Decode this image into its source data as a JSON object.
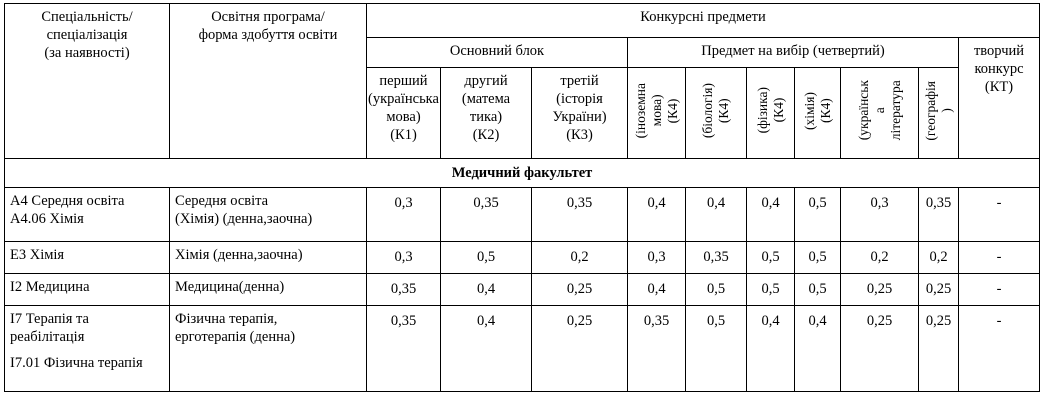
{
  "header": {
    "specialty": "Спеціальність/\nспеціалізація\n(за наявності)",
    "program": "Освітня програма/\nформа здобуття освіти",
    "subjects": "Конкурсні предмети",
    "main_block": "Основний блок",
    "choice_block": "Предмет на вибір (четвертий)",
    "creative": "творчий\nконкурс\n(КТ)",
    "k1": "перший\n(українська\nмова)\n(К1)",
    "k2": "другий\n(матема\nтика)\n(К2)",
    "k3": "третій\n(історія\nУкраїни)\n(К3)",
    "c1": "(іноземна\nмова)\n(К4)",
    "c2": "(біологія)\n(К4)",
    "c3": "(фізика)\n(К4)",
    "c4": "(хімія)\n(К4)",
    "c5": "(українськ\nа\nлітература",
    "c6": "(географія\n)"
  },
  "faculty": "Медичний факультет",
  "rows": [
    {
      "specialty": "А4 Середня освіта\nА4.06 Хімія",
      "program": "Середня освіта\n(Хімія) (денна,заочна)",
      "values": [
        "0,3",
        "0,35",
        "0,35",
        "0,4",
        "0,4",
        "0,4",
        "0,5",
        "0,3",
        "0,35",
        "-"
      ]
    },
    {
      "specialty": "Е3 Хімія",
      "program": "Хімія (денна,заочна)",
      "values": [
        "0,3",
        "0,5",
        "0,2",
        "0,3",
        "0,35",
        "0,5",
        "0,5",
        "0,2",
        "0,2",
        "-"
      ]
    },
    {
      "specialty": "І2 Медицина",
      "program": "Медицина(денна)",
      "values": [
        "0,35",
        "0,4",
        "0,25",
        "0,4",
        "0,5",
        "0,5",
        "0,5",
        "0,25",
        "0,25",
        "-"
      ]
    },
    {
      "specialty_line1": "І7 Терапія та\nреабілітація",
      "specialty_line2": "І7.01 Фізична терапія",
      "program": "Фізична терапія,\nерготерапія (денна)",
      "values": [
        "0,35",
        "0,4",
        "0,25",
        "0,35",
        "0,5",
        "0,4",
        "0,4",
        "0,25",
        "0,25",
        "-"
      ]
    }
  ]
}
